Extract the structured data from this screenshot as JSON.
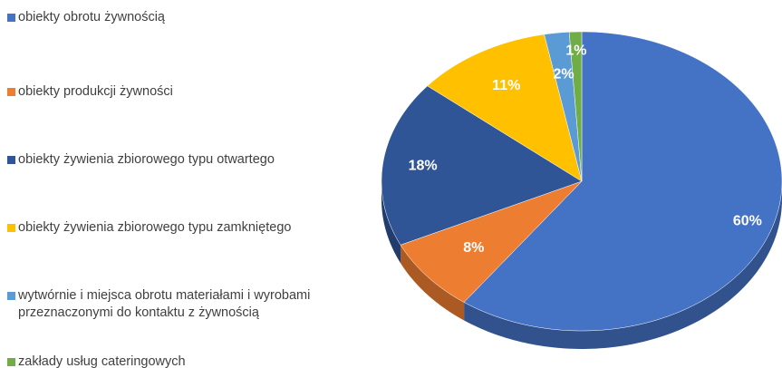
{
  "chart_data": {
    "type": "pie",
    "categories": [
      "obiekty obrotu żywnością",
      "obiekty produkcji żywności",
      "obiekty żywienia zbiorowego typu otwartego",
      "obiekty żywienia zbiorowego typu zamkniętego",
      "wytwórnie i miejsca obrotu materiałami i wyrobami przeznaczonymi do kontaktu z żywnością",
      "zakłady usług cateringowych"
    ],
    "values": [
      60,
      8,
      18,
      11,
      2,
      1
    ],
    "value_labels": [
      "60%",
      "8%",
      "18%",
      "11%",
      "2%",
      "1%"
    ],
    "colors": [
      "#4472c4",
      "#ed7d31",
      "#2f5597",
      "#ffc000",
      "#5b9bd5",
      "#70ad47"
    ],
    "legend": "left"
  }
}
